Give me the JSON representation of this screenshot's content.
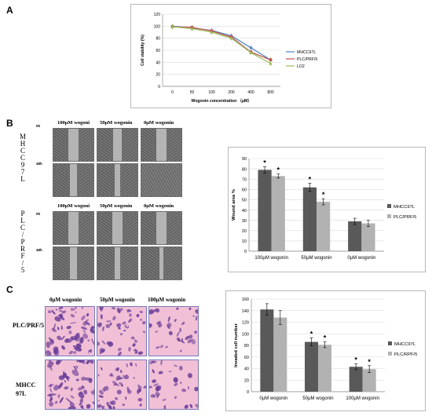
{
  "panels": {
    "a": "A",
    "b": "B",
    "c": "C"
  },
  "panel_b": {
    "mhcc_letters": [
      "M",
      "H",
      "C",
      "C",
      "9",
      "7",
      "L"
    ],
    "plc_letters": [
      "P",
      "L",
      "C",
      "/",
      "P",
      "R",
      "F",
      "/",
      "5"
    ],
    "time_0h": "0h",
    "time_48h": "48h",
    "mhcc_headers": [
      "100μM wogoni",
      "50μM wogonin",
      "0μM wogonin"
    ],
    "plc_headers": [
      "100μM wogoni",
      "50μM wogonin",
      "0μM wogonin"
    ]
  },
  "panel_c": {
    "headers": [
      "0μM wogonin",
      "50μM wogonin",
      "100μM wogonin"
    ],
    "row1_label": "PLC/PRF/5",
    "row2_label_1": "MHCC",
    "row2_label_2": "97L"
  },
  "colors": {
    "mhcc_line": "#4f81bd",
    "plc_line": "#c0504d",
    "lo2_line": "#9bbb59",
    "bar_dark": "#595959",
    "bar_light": "#b2b2b2",
    "invasion_bg": "#f2c0d6",
    "invasion_cell": "#6a3f98"
  },
  "chart_data": [
    {
      "type": "line",
      "ylabel": "Cell viability (%)",
      "xlabel": "Wogonin concentration （μM）",
      "categories": [
        "0",
        "50",
        "100",
        "200",
        "400",
        "800"
      ],
      "y_ticks": [
        "0",
        "20",
        "40",
        "60",
        "80",
        "100",
        "120"
      ],
      "ylim": [
        0,
        120
      ],
      "grid": true,
      "legend": "right",
      "series": [
        {
          "name": "MHCC97L",
          "values": [
            100,
            97,
            93,
            84,
            64,
            44
          ]
        },
        {
          "name": "PLC/PRF/5",
          "values": [
            99,
            98,
            92,
            82,
            57,
            44
          ]
        },
        {
          "name": "LO2",
          "values": [
            99,
            96,
            90,
            80,
            56,
            38
          ]
        }
      ]
    },
    {
      "type": "bar",
      "ylabel": "Wound area %",
      "categories": [
        "100μM wogonin",
        "50μM wogonin",
        "0μM wogonin"
      ],
      "y_ticks": [
        "0",
        "10",
        "20",
        "30",
        "40",
        "50",
        "60",
        "70",
        "80",
        "90"
      ],
      "ylim": [
        0,
        90
      ],
      "grid": true,
      "legend": "right",
      "series": [
        {
          "name": "MHCC97L",
          "values": [
            79,
            62,
            29
          ],
          "errors": [
            3,
            4,
            3
          ]
        },
        {
          "name": "PLC/PRF/5",
          "values": [
            73,
            48,
            27
          ],
          "errors": [
            2,
            3,
            3
          ]
        }
      ],
      "significance": [
        "*",
        "*",
        "*",
        "*",
        "",
        ""
      ]
    },
    {
      "type": "bar",
      "ylabel": "Invaded cell number",
      "categories": [
        "0μM wogonin",
        "50μM wogonin",
        "100μM wogonin"
      ],
      "y_ticks": [
        "0",
        "20",
        "40",
        "60",
        "80",
        "100",
        "120",
        "140",
        "160"
      ],
      "ylim": [
        0,
        160
      ],
      "grid": true,
      "legend": "right",
      "series": [
        {
          "name": "MHCC97L",
          "values": [
            142,
            86,
            43
          ],
          "errors": [
            10,
            7,
            5
          ]
        },
        {
          "name": "PLC/RPF/5",
          "values": [
            128,
            81,
            39
          ],
          "errors": [
            12,
            5,
            6
          ]
        }
      ],
      "significance": [
        "",
        "",
        "*",
        "*",
        "*",
        "*"
      ]
    }
  ]
}
